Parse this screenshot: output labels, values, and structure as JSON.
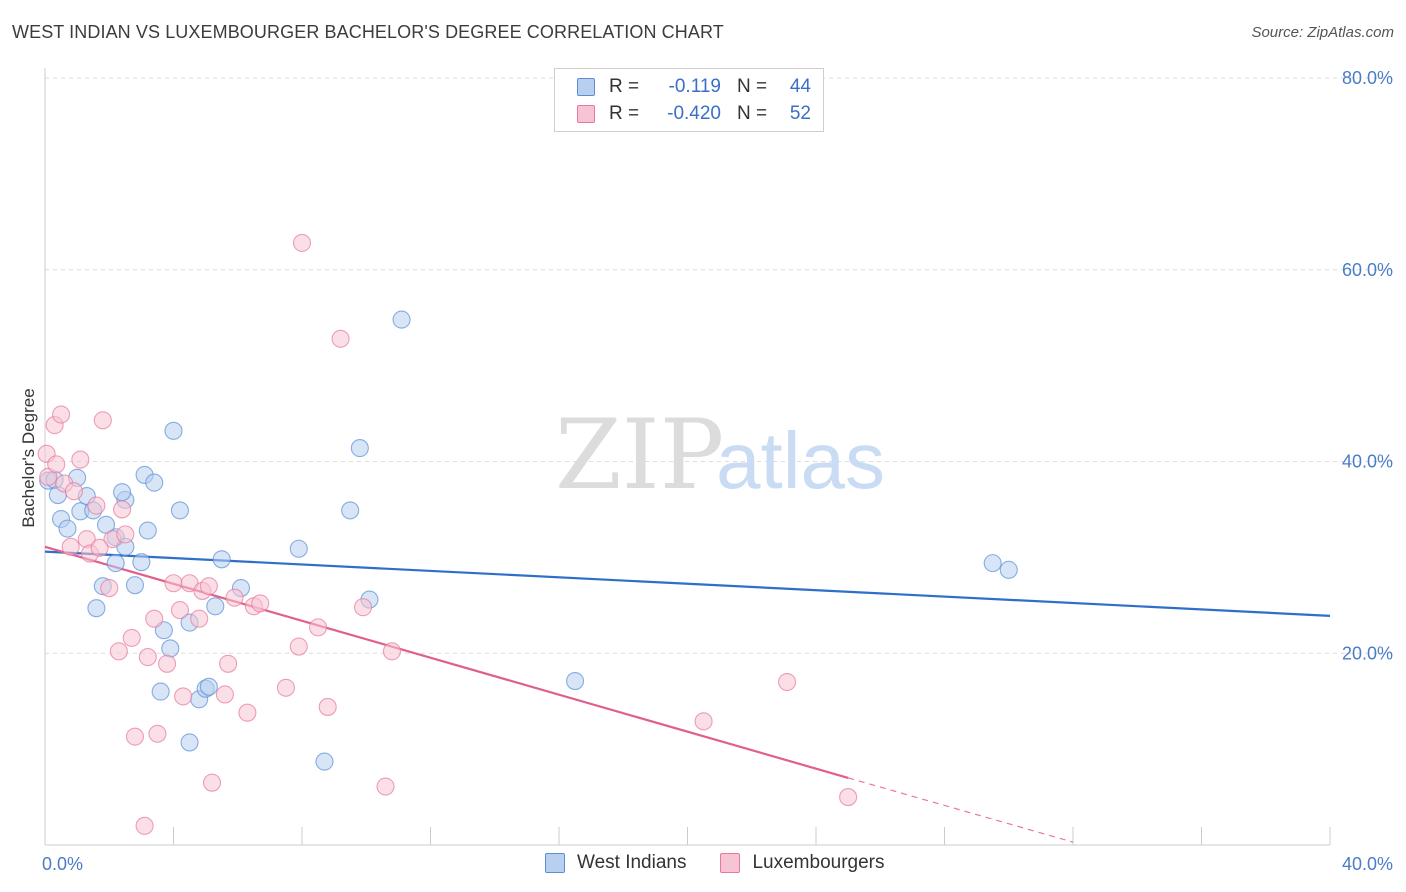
{
  "title": "WEST INDIAN VS LUXEMBOURGER BACHELOR'S DEGREE CORRELATION CHART",
  "source": "Source: ZipAtlas.com",
  "watermark": {
    "zip": "ZIP",
    "atlas": "atlas"
  },
  "legend": {
    "rows": [
      {
        "r_label": "R =",
        "r_value": "-0.119",
        "n_label": "N =",
        "n_value": "44",
        "color": "#5b8fd4",
        "fill": "#b7d0f0"
      },
      {
        "r_label": "R =",
        "r_value": "-0.420",
        "n_label": "N =",
        "n_value": "52",
        "color": "#e8789d",
        "fill": "#f7c4d3"
      }
    ]
  },
  "bottom_legend": [
    "West Indians",
    "Luxembourgers"
  ],
  "chart_data": {
    "type": "scatter",
    "ylabel": "Bachelor's Degree",
    "xlim": [
      0,
      40
    ],
    "ylim": [
      0,
      80
    ],
    "x_tick_labels": [
      "0.0%",
      "40.0%"
    ],
    "y_ticks": [
      20,
      40,
      60,
      80
    ],
    "y_tick_labels": [
      "20.0%",
      "40.0%",
      "60.0%",
      "80.0%"
    ],
    "grid": true,
    "series": [
      {
        "name": "West Indians",
        "color": "#5b8fd4",
        "fill": "#b7d0f0",
        "trend": {
          "x": [
            0,
            40
          ],
          "y": [
            30.6,
            23.9
          ]
        },
        "points": [
          [
            0.1,
            38.0
          ],
          [
            0.4,
            36.5
          ],
          [
            0.5,
            34.0
          ],
          [
            0.7,
            33.0
          ],
          [
            1.0,
            38.3
          ],
          [
            1.1,
            34.8
          ],
          [
            1.3,
            36.4
          ],
          [
            1.5,
            34.9
          ],
          [
            1.6,
            24.7
          ],
          [
            1.8,
            27.0
          ],
          [
            2.2,
            32.1
          ],
          [
            2.2,
            29.4
          ],
          [
            2.5,
            31.1
          ],
          [
            2.5,
            36.0
          ],
          [
            2.8,
            27.1
          ],
          [
            3.0,
            29.5
          ],
          [
            3.1,
            38.6
          ],
          [
            3.2,
            32.8
          ],
          [
            3.4,
            37.8
          ],
          [
            3.6,
            16.0
          ],
          [
            3.7,
            22.4
          ],
          [
            3.9,
            20.5
          ],
          [
            4.0,
            43.2
          ],
          [
            4.2,
            34.9
          ],
          [
            4.5,
            10.7
          ],
          [
            4.5,
            23.2
          ],
          [
            4.8,
            15.2
          ],
          [
            5.0,
            16.3
          ],
          [
            5.1,
            16.5
          ],
          [
            5.3,
            24.9
          ],
          [
            5.5,
            29.8
          ],
          [
            6.1,
            26.8
          ],
          [
            7.9,
            30.9
          ],
          [
            8.7,
            8.7
          ],
          [
            9.5,
            34.9
          ],
          [
            9.8,
            41.4
          ],
          [
            10.1,
            25.6
          ],
          [
            11.1,
            54.8
          ],
          [
            16.5,
            17.1
          ],
          [
            29.5,
            29.4
          ],
          [
            30.0,
            28.7
          ],
          [
            2.4,
            36.8
          ],
          [
            1.9,
            33.4
          ],
          [
            0.3,
            38.1
          ]
        ]
      },
      {
        "name": "Luxembourgers",
        "color": "#e8789d",
        "fill": "#f7c4d3",
        "trend": {
          "x": [
            0,
            25
          ],
          "y": [
            31.1,
            7.0
          ]
        },
        "trend_dashed": {
          "x": [
            25,
            32
          ],
          "y": [
            7.0,
            0.3
          ]
        },
        "points": [
          [
            0.05,
            40.8
          ],
          [
            0.1,
            38.4
          ],
          [
            0.3,
            43.8
          ],
          [
            0.35,
            39.7
          ],
          [
            0.5,
            44.9
          ],
          [
            0.6,
            37.7
          ],
          [
            0.8,
            31.1
          ],
          [
            0.9,
            36.9
          ],
          [
            1.1,
            40.2
          ],
          [
            1.3,
            31.9
          ],
          [
            1.4,
            30.4
          ],
          [
            1.6,
            35.4
          ],
          [
            1.8,
            44.3
          ],
          [
            2.0,
            26.8
          ],
          [
            2.1,
            31.9
          ],
          [
            2.3,
            20.2
          ],
          [
            2.4,
            35.0
          ],
          [
            2.5,
            32.4
          ],
          [
            2.7,
            21.6
          ],
          [
            2.8,
            11.3
          ],
          [
            3.1,
            2.0
          ],
          [
            3.2,
            19.6
          ],
          [
            3.4,
            23.6
          ],
          [
            3.5,
            11.6
          ],
          [
            3.8,
            18.9
          ],
          [
            4.0,
            27.3
          ],
          [
            4.2,
            24.5
          ],
          [
            4.3,
            15.5
          ],
          [
            4.5,
            27.3
          ],
          [
            4.8,
            23.6
          ],
          [
            4.9,
            26.5
          ],
          [
            5.1,
            27.0
          ],
          [
            5.2,
            6.5
          ],
          [
            5.6,
            15.7
          ],
          [
            5.7,
            18.9
          ],
          [
            5.9,
            25.8
          ],
          [
            6.3,
            13.8
          ],
          [
            6.5,
            24.9
          ],
          [
            6.7,
            25.2
          ],
          [
            7.5,
            16.4
          ],
          [
            7.9,
            20.7
          ],
          [
            8.0,
            62.8
          ],
          [
            8.5,
            22.7
          ],
          [
            8.8,
            14.4
          ],
          [
            9.2,
            52.8
          ],
          [
            9.9,
            24.8
          ],
          [
            10.6,
            6.1
          ],
          [
            10.8,
            20.2
          ],
          [
            20.5,
            12.9
          ],
          [
            23.1,
            17.0
          ],
          [
            25.0,
            5.0
          ],
          [
            1.7,
            31.0
          ]
        ]
      }
    ]
  }
}
